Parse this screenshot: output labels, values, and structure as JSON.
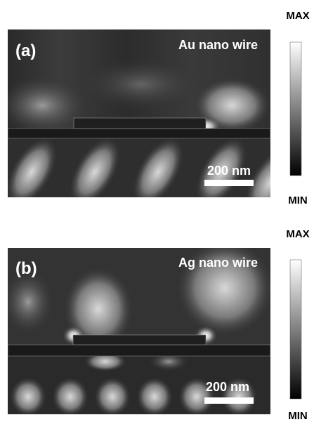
{
  "panels": [
    {
      "label": "(a)",
      "material": "Au nano wire",
      "scale_bar": "200 nm",
      "colorbar_max": "MAX",
      "colorbar_min": "MIN"
    },
    {
      "label": "(b)",
      "material": "Ag nano wire",
      "scale_bar": "200 nm",
      "colorbar_max": "MAX",
      "colorbar_min": "MIN"
    }
  ]
}
